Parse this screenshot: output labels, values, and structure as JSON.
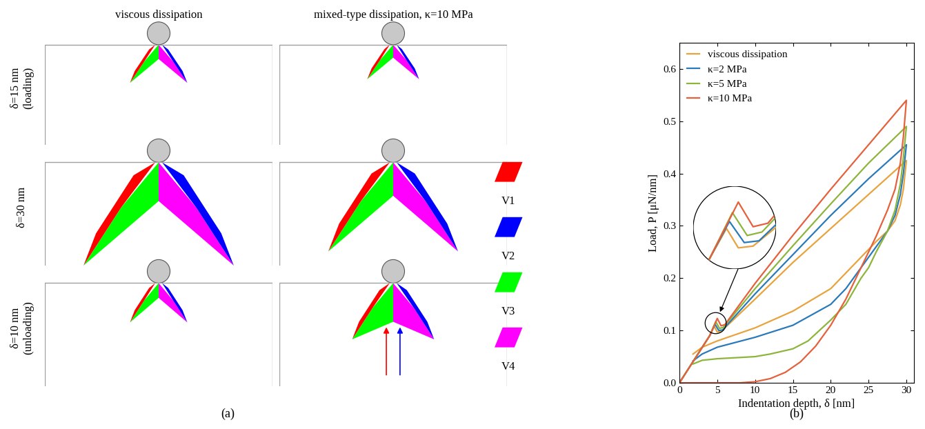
{
  "panel_labels": [
    "(a)",
    "(b)"
  ],
  "panel_a": {
    "columns": [
      "viscous dissipation",
      "mixed-type dissipation, κ=10 MPa"
    ],
    "rows": [
      [
        "δ=15 nm",
        "(loading)"
      ],
      [
        "δ=30 nm"
      ],
      [
        "δ=10 nm",
        "(unloading)"
      ]
    ],
    "legend": [
      {
        "name": "V1",
        "color": "#ff0000"
      },
      {
        "name": "V2",
        "color": "#0000ff"
      },
      {
        "name": "V3",
        "color": "#00ff00"
      },
      {
        "name": "V4",
        "color": "#ff00ff"
      }
    ]
  },
  "chart_data": {
    "type": "line",
    "xlabel": "Indentation depth, δ [nm]",
    "ylabel": "Load, P [μN/nm]",
    "xlim": [
      0,
      31
    ],
    "ylim": [
      0,
      0.65
    ],
    "xticks": [
      0,
      5,
      10,
      15,
      20,
      25,
      30
    ],
    "yticks": [
      {
        "value": 0,
        "label": "0.0"
      },
      {
        "value": 0.1,
        "label": "0.1"
      },
      {
        "value": 0.2,
        "label": "0.2"
      },
      {
        "value": 0.3,
        "label": "0.3"
      },
      {
        "value": 0.4,
        "label": "0.4"
      },
      {
        "value": 0.5,
        "label": "0.5"
      },
      {
        "value": 0.6,
        "label": "0.6"
      }
    ],
    "legend": "upper left",
    "series": [
      {
        "name": "viscous dissipation",
        "color": "#e8a33d",
        "x": [
          0,
          2,
          4,
          4.6,
          5.0,
          5.5,
          10,
          15,
          20,
          25,
          30,
          29.6,
          29.2,
          28.5,
          27.5,
          26,
          25,
          24,
          20,
          15,
          10,
          5,
          3,
          1.8
        ],
        "values": [
          0,
          0.045,
          0.09,
          0.108,
          0.097,
          0.098,
          0.16,
          0.23,
          0.295,
          0.36,
          0.425,
          0.37,
          0.34,
          0.31,
          0.29,
          0.27,
          0.255,
          0.24,
          0.18,
          0.137,
          0.105,
          0.08,
          0.068,
          0.055
        ]
      },
      {
        "name": "κ=2 MPa",
        "color": "#2a7ab9",
        "x": [
          0,
          2,
          4,
          4.7,
          5.2,
          5.7,
          10,
          15,
          20,
          25,
          30,
          29.6,
          29.2,
          28.5,
          27.5,
          26,
          25,
          24,
          22,
          20,
          15,
          10,
          5,
          3,
          1.8
        ],
        "values": [
          0,
          0.045,
          0.09,
          0.112,
          0.1,
          0.101,
          0.17,
          0.245,
          0.32,
          0.39,
          0.455,
          0.4,
          0.36,
          0.32,
          0.29,
          0.26,
          0.24,
          0.22,
          0.18,
          0.15,
          0.11,
          0.087,
          0.068,
          0.055,
          0.042
        ]
      },
      {
        "name": "κ=5 MPa",
        "color": "#8db53c",
        "x": [
          0,
          2,
          4,
          4.8,
          5.3,
          5.8,
          10,
          15,
          20,
          25,
          30,
          29.6,
          29.2,
          28.5,
          27.5,
          26,
          25,
          24,
          22,
          20,
          17,
          15,
          12,
          10,
          5,
          3,
          1.8
        ],
        "values": [
          0,
          0.045,
          0.09,
          0.117,
          0.104,
          0.106,
          0.18,
          0.262,
          0.342,
          0.42,
          0.49,
          0.43,
          0.38,
          0.33,
          0.29,
          0.25,
          0.22,
          0.2,
          0.15,
          0.12,
          0.08,
          0.065,
          0.055,
          0.05,
          0.046,
          0.043,
          0.036
        ]
      },
      {
        "name": "κ=10 MPa",
        "color": "#e5603b",
        "x": [
          0,
          2,
          4,
          5.0,
          5.5,
          6,
          10,
          15,
          20,
          25,
          30,
          29.6,
          29.2,
          28.5,
          27.5,
          26,
          25,
          24,
          22,
          20,
          18,
          16,
          14,
          12,
          10,
          8,
          0
        ],
        "values": [
          0,
          0.045,
          0.09,
          0.123,
          0.109,
          0.111,
          0.19,
          0.282,
          0.37,
          0.455,
          0.54,
          0.47,
          0.42,
          0.37,
          0.33,
          0.28,
          0.25,
          0.22,
          0.16,
          0.11,
          0.07,
          0.04,
          0.02,
          0.008,
          0.002,
          0,
          0
        ]
      }
    ]
  }
}
